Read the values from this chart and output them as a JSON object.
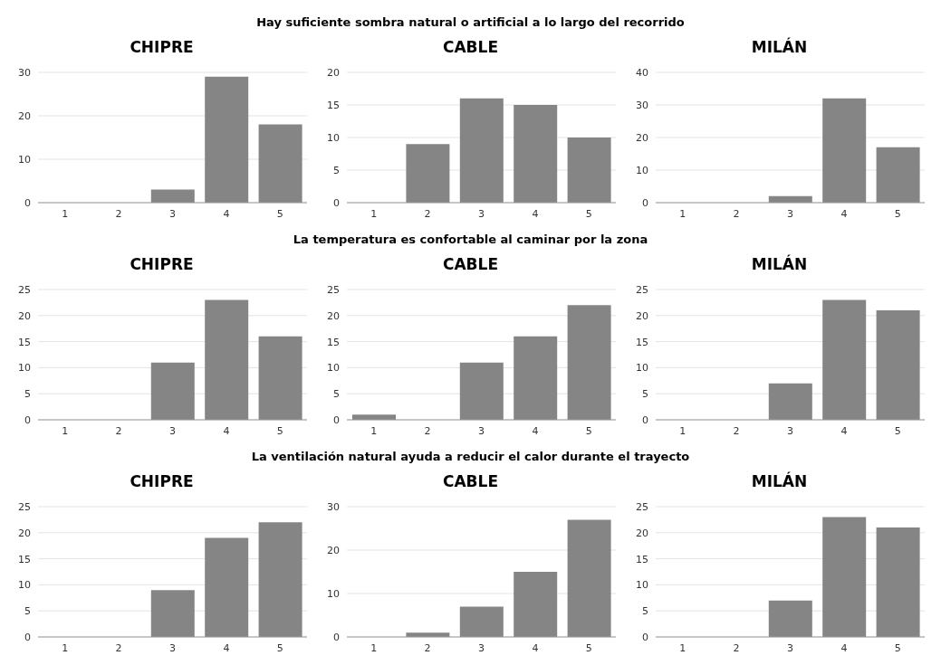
{
  "chart_data": [
    {
      "type": "other",
      "title": "Hay suficiente sombra natural o artificial a lo largo del recorrido"
    },
    {
      "type": "bar",
      "title": "CHIPRE",
      "categories": [
        "1",
        "2",
        "3",
        "4",
        "5"
      ],
      "values": [
        0,
        0,
        3,
        29,
        18
      ],
      "color": "#858585",
      "ylim": [
        0,
        30
      ],
      "yticks": [
        0,
        10,
        20,
        30
      ],
      "grid": "y"
    },
    {
      "type": "bar",
      "title": "CABLE",
      "categories": [
        "1",
        "2",
        "3",
        "4",
        "5"
      ],
      "values": [
        0,
        9,
        16,
        15,
        10
      ],
      "color": "#858585",
      "ylim": [
        0,
        20
      ],
      "yticks": [
        0,
        5,
        10,
        15,
        20
      ],
      "grid": "y"
    },
    {
      "type": "bar",
      "title": "MILÁN",
      "categories": [
        "1",
        "2",
        "3",
        "4",
        "5"
      ],
      "values": [
        0,
        0,
        2,
        32,
        17
      ],
      "color": "#858585",
      "ylim": [
        0,
        40
      ],
      "yticks": [
        0,
        10,
        20,
        30,
        40
      ],
      "grid": "y"
    },
    {
      "type": "other",
      "title": "La temperatura es confortable al caminar por la zona"
    },
    {
      "type": "bar",
      "title": "CHIPRE",
      "categories": [
        "1",
        "2",
        "3",
        "4",
        "5"
      ],
      "values": [
        0,
        0,
        11,
        23,
        16
      ],
      "color": "#858585",
      "ylim": [
        0,
        25
      ],
      "yticks": [
        0,
        5,
        10,
        15,
        20,
        25
      ],
      "grid": "y"
    },
    {
      "type": "bar",
      "title": "CABLE",
      "categories": [
        "1",
        "2",
        "3",
        "4",
        "5"
      ],
      "values": [
        1,
        0,
        11,
        16,
        22
      ],
      "color": "#858585",
      "ylim": [
        0,
        25
      ],
      "yticks": [
        0,
        5,
        10,
        15,
        20,
        25
      ],
      "grid": "y"
    },
    {
      "type": "bar",
      "title": "MILÁN",
      "categories": [
        "1",
        "2",
        "3",
        "4",
        "5"
      ],
      "values": [
        0,
        0,
        7,
        23,
        21
      ],
      "color": "#858585",
      "ylim": [
        0,
        25
      ],
      "yticks": [
        0,
        5,
        10,
        15,
        20,
        25
      ],
      "grid": "y"
    },
    {
      "type": "other",
      "title": "La ventilación natural ayuda a reducir el calor durante el trayecto"
    },
    {
      "type": "bar",
      "title": "CHIPRE",
      "categories": [
        "1",
        "2",
        "3",
        "4",
        "5"
      ],
      "values": [
        0,
        0,
        9,
        19,
        22
      ],
      "color": "#858585",
      "ylim": [
        0,
        25
      ],
      "yticks": [
        0,
        5,
        10,
        15,
        20,
        25
      ],
      "grid": "y"
    },
    {
      "type": "bar",
      "title": "CABLE",
      "categories": [
        "1",
        "2",
        "3",
        "4",
        "5"
      ],
      "values": [
        0,
        1,
        7,
        15,
        27
      ],
      "color": "#858585",
      "ylim": [
        0,
        30
      ],
      "yticks": [
        0,
        10,
        20,
        30
      ],
      "grid": "y"
    },
    {
      "type": "bar",
      "title": "MILÁN",
      "categories": [
        "1",
        "2",
        "3",
        "4",
        "5"
      ],
      "values": [
        0,
        0,
        7,
        23,
        21
      ],
      "color": "#858585",
      "ylim": [
        0,
        25
      ],
      "yticks": [
        0,
        5,
        10,
        15,
        20,
        25
      ],
      "grid": "y"
    }
  ]
}
